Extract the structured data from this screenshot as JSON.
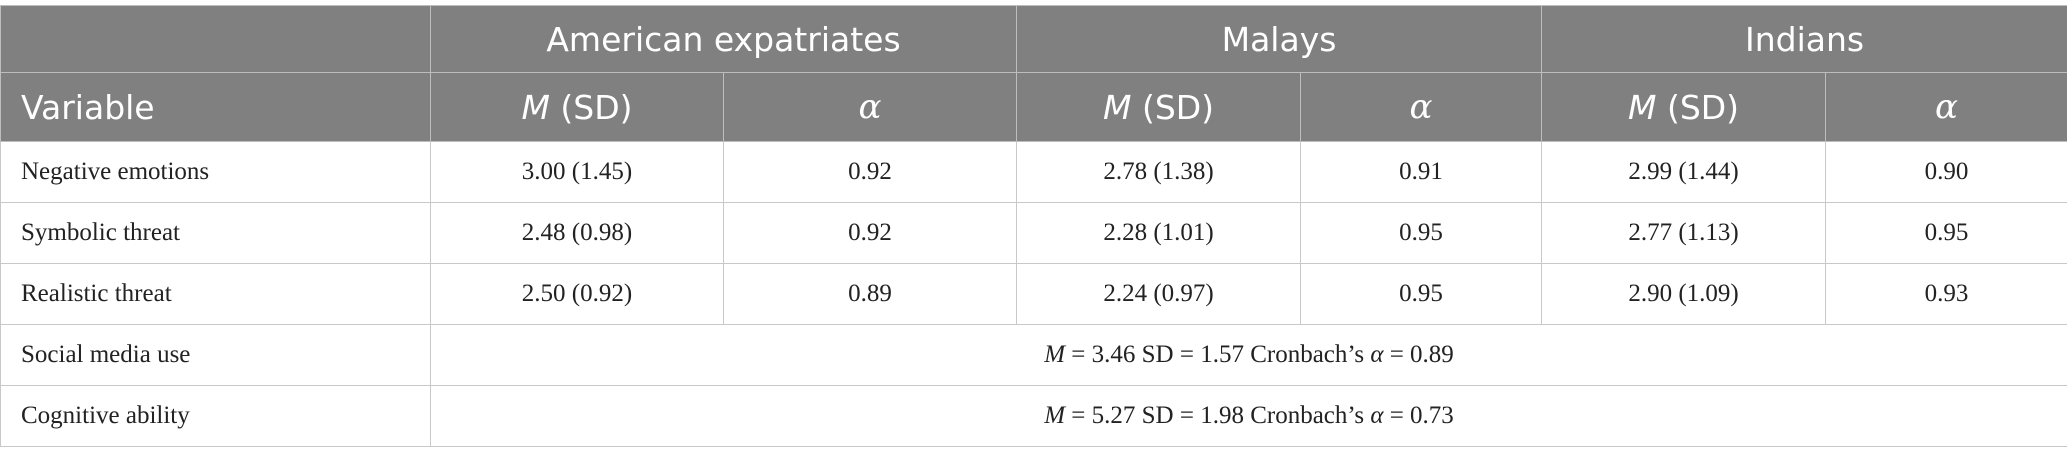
{
  "header": {
    "groups": [
      "American expatriates",
      "Malays",
      "Indians"
    ],
    "variable_label": "Variable",
    "mean_symbol": "M",
    "sd_suffix": " (SD)",
    "alpha_symbol": "α"
  },
  "rows": [
    {
      "label": "Negative emotions",
      "cells": [
        "3.00 (1.45)",
        "0.92",
        "2.78 (1.38)",
        "0.91",
        "2.99 (1.44)",
        "0.90"
      ]
    },
    {
      "label": "Symbolic threat",
      "cells": [
        "2.48 (0.98)",
        "0.92",
        "2.28 (1.01)",
        "0.95",
        "2.77 (1.13)",
        "0.95"
      ]
    },
    {
      "label": "Realistic threat",
      "cells": [
        "2.50 (0.92)",
        "0.89",
        "2.24 (0.97)",
        "0.95",
        "2.90 (1.09)",
        "0.93"
      ]
    }
  ],
  "summary_rows": [
    {
      "label": "Social media use",
      "m_symbol": "M",
      "text": " = 3.46 SD = 1.57 Cronbach’s ",
      "alpha_symbol": "α",
      "alpha_text": " = 0.89"
    },
    {
      "label": "Cognitive ability",
      "m_symbol": "M",
      "text": " = 5.27 SD = 1.98 Cronbach’s ",
      "alpha_symbol": "α",
      "alpha_text": " = 0.73"
    }
  ],
  "colors": {
    "header_background": "#808080",
    "header_text": "#ffffff",
    "body_text": "#222222",
    "grid_line": "#c8c8c8"
  }
}
